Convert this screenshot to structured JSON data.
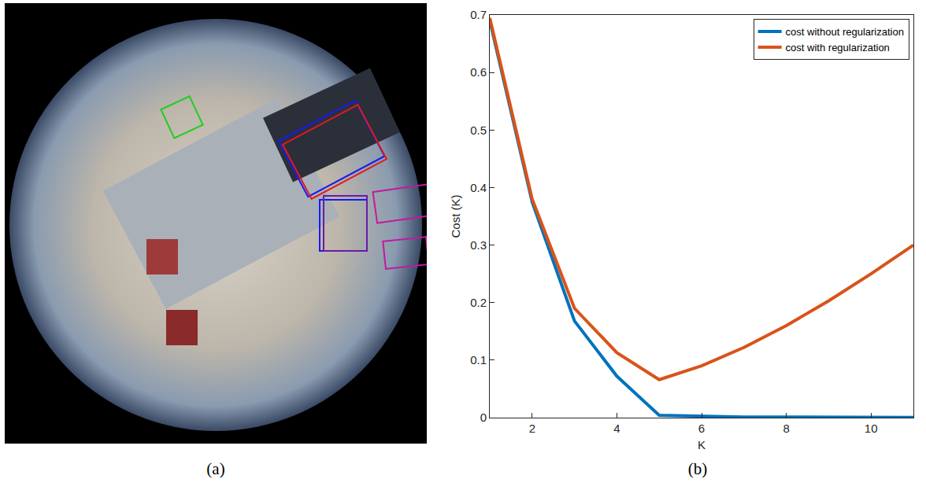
{
  "panel_labels": {
    "a": "(a)",
    "b": "(b)"
  },
  "chart_data": {
    "type": "line",
    "x": [
      1,
      2,
      3,
      4,
      5,
      6,
      7,
      8,
      9,
      10,
      11
    ],
    "series": [
      {
        "name": "cost without regularization",
        "color": "#0072BD",
        "values": [
          0.69,
          0.375,
          0.168,
          0.072,
          0.004,
          0.002,
          0.001,
          0.001,
          0.0005,
          0.0003,
          0.0002
        ]
      },
      {
        "name": "cost with regularization",
        "color": "#D95319",
        "values": [
          0.695,
          0.38,
          0.19,
          0.113,
          0.066,
          0.09,
          0.122,
          0.16,
          0.203,
          0.25,
          0.3
        ]
      }
    ],
    "x_label": "K",
    "y_label": "Cost (K)",
    "xlim": [
      1,
      11
    ],
    "xticks": [
      2,
      4,
      6,
      8,
      10
    ],
    "ylim": [
      0,
      0.7
    ],
    "yticks": [
      0,
      0.1,
      0.2,
      0.3,
      0.4,
      0.5,
      0.6,
      0.7
    ],
    "grid": false,
    "legend": "top-right"
  }
}
